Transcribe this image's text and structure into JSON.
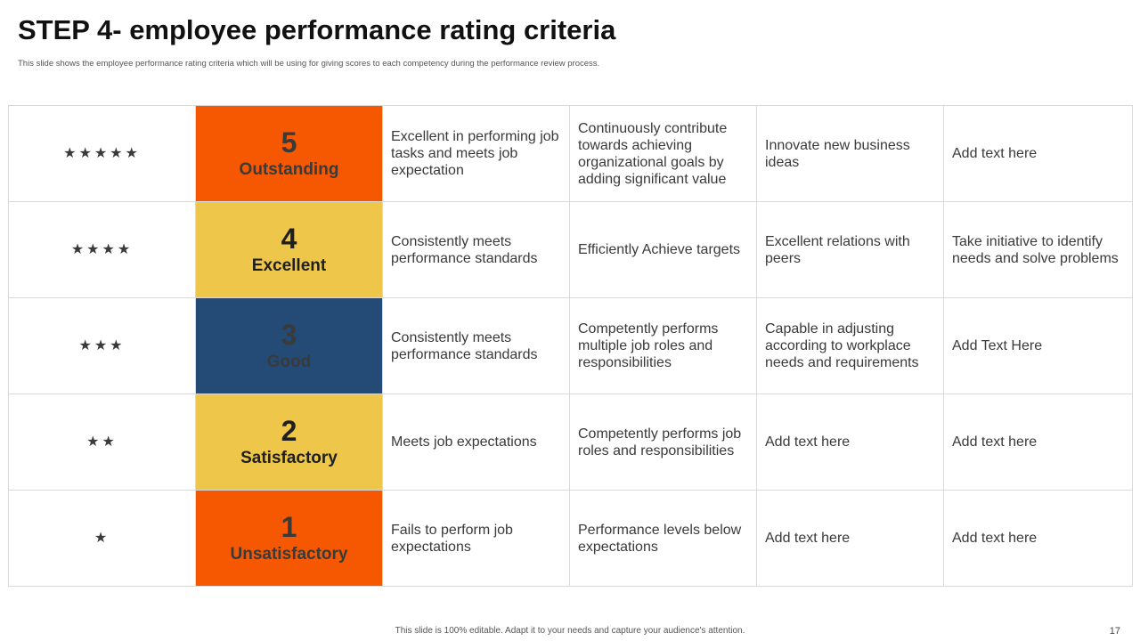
{
  "slide": {
    "title": "STEP 4- employee performance rating criteria",
    "subtitle": "This slide shows the employee performance rating criteria which will be using for giving scores to each competency during the performance review process.",
    "footer": "This slide is 100% editable.  Adapt it to your needs and capture your audience's attention.",
    "page_number": "17"
  },
  "colors": {
    "orange": "#f55800",
    "yellow": "#eec64a",
    "navy": "#244a76",
    "star_gray": "#cfcfcf"
  },
  "rows": [
    {
      "stars": "★★★★★",
      "star_count": 5,
      "number": "5",
      "label": "Outstanding",
      "color": "#f55800",
      "cells": [
        "Excellent in performing job tasks and meets job expectation",
        "Continuously  contribute towards achieving organizational goals by adding significant value",
        "Innovate  new business ideas",
        "Add text here"
      ]
    },
    {
      "stars": "★★★★",
      "star_count": 4,
      "number": "4",
      "label": "Excellent",
      "color": "#eec64a",
      "cells": [
        "Consistently meets performance standards",
        "Efficiently Achieve targets",
        "Excellent relations with peers",
        "Take initiative to identify needs and solve problems"
      ]
    },
    {
      "stars": "★★★",
      "star_count": 3,
      "number": "3",
      "label": "Good",
      "color": "#244a76",
      "cells": [
        "Consistently meets performance standards",
        "Competently performs multiple job roles and responsibilities",
        "Capable in adjusting according to workplace needs and requirements",
        "Add Text Here"
      ]
    },
    {
      "stars": "★★",
      "star_count": 2,
      "number": "2",
      "label": "Satisfactory",
      "color": "#eec64a",
      "cells": [
        "Meets job expectations",
        "Competently performs job roles and responsibilities",
        "Add text here",
        "Add text here"
      ]
    },
    {
      "stars": "★",
      "star_count": 1,
      "number": "1",
      "label": "Unsatisfactory",
      "color": "#f55800",
      "cells": [
        "Fails to perform job expectations",
        "Performance levels below expectations",
        "Add text here",
        "Add text here"
      ]
    }
  ]
}
